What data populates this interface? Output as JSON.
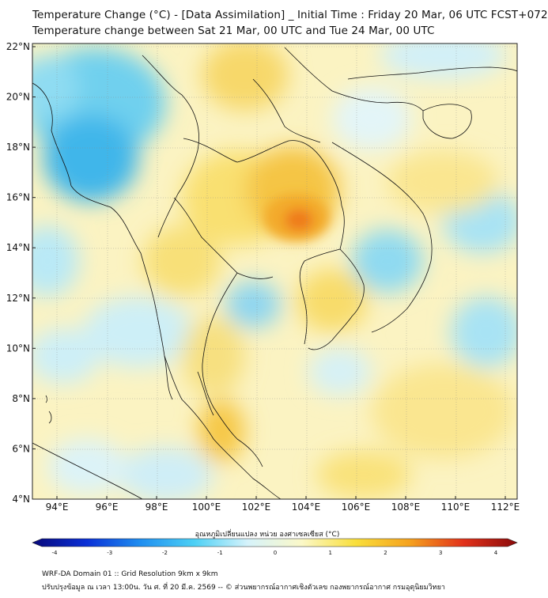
{
  "title": {
    "line1": "Temperature Change (°C) - [Data Assimilation] _ Initial Time : Friday 20 Mar, 06 UTC FCST+072",
    "line2": "Temperature change between Sat 21 Mar, 00 UTC and Tue 24 Mar, 00 UTC"
  },
  "axes": {
    "lat_labels": [
      "22°N",
      "20°N",
      "18°N",
      "16°N",
      "14°N",
      "12°N",
      "10°N",
      "8°N",
      "6°N",
      "4°N"
    ],
    "lon_labels": [
      "94°E",
      "96°E",
      "98°E",
      "100°E",
      "102°E",
      "104°E",
      "106°E",
      "108°E",
      "110°E",
      "112°E"
    ]
  },
  "colorbar": {
    "title": "อุณหภูมิเปลี่ยนแปลง หน่วย องศาเซลเซียส (°C)",
    "ticks": [
      "-4",
      "-3",
      "-2",
      "-1",
      "0",
      "1",
      "2",
      "3",
      "4"
    ],
    "colors": [
      "#08087a",
      "#0a2fd6",
      "#1f8ef0",
      "#4cd0f5",
      "#d6f3fb",
      "#fbf8c8",
      "#f9df3c",
      "#f5a21e",
      "#e2321b",
      "#8a0a0a"
    ]
  },
  "footer": {
    "line1": "WRF-DA Domain 01 :: Grid Resolution 9km x 9km",
    "line2": "ปรับปรุงข้อมูล ณ เวลา 13:00น. วัน ศ. ที่ 20 มี.ค. 2569 -- © ส่วนพยากรณ์อากาศเชิงตัวเลข กองพยากรณ์อากาศ กรมอุตุนิยมวิทยา"
  }
}
